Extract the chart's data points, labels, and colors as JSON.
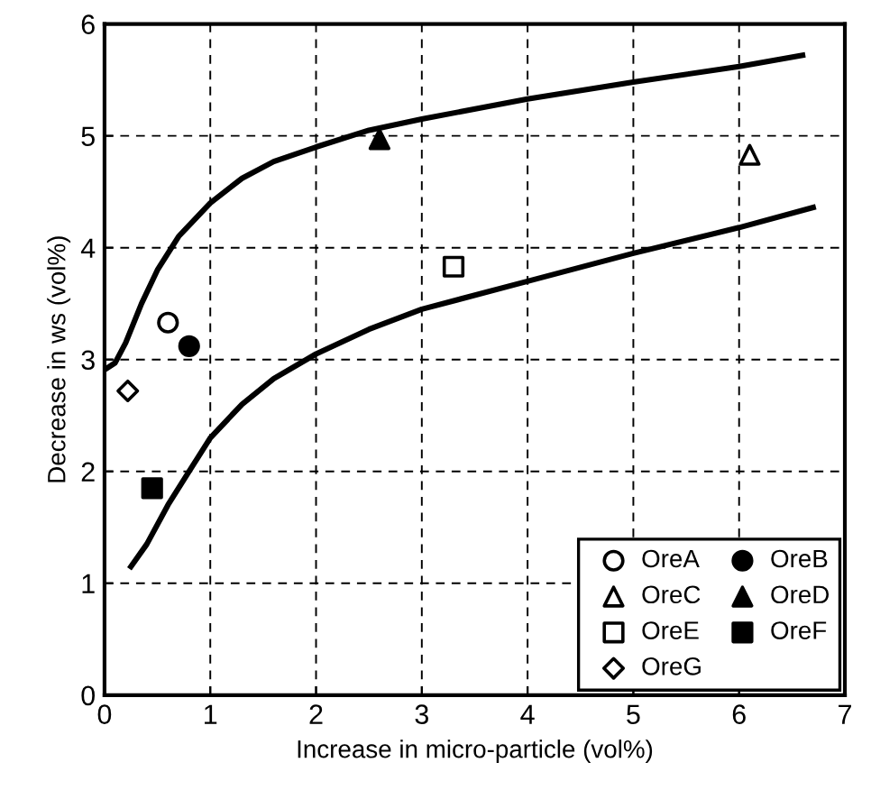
{
  "chart_data": {
    "type": "scatter",
    "xlabel": "Increase in micro-particle (vol%)",
    "ylabel": "Decrease in ws (vol%)",
    "xlim": [
      0,
      7
    ],
    "ylim": [
      0,
      6
    ],
    "xticks": [
      0,
      1,
      2,
      3,
      4,
      5,
      6,
      7
    ],
    "yticks": [
      0,
      1,
      2,
      3,
      4,
      5,
      6
    ],
    "grid": true,
    "legend": "bottom right",
    "series": [
      {
        "name": "OreA",
        "color": "#ffffff",
        "marker": "circle",
        "x": [
          0.6
        ],
        "values": [
          3.33
        ]
      },
      {
        "name": "OreB",
        "color": "#000000",
        "marker": "circle",
        "x": [
          0.8
        ],
        "values": [
          3.12
        ]
      },
      {
        "name": "OreC",
        "color": "#ffffff",
        "marker": "triangle",
        "x": [
          6.1
        ],
        "values": [
          4.83
        ]
      },
      {
        "name": "OreD",
        "color": "#000000",
        "marker": "triangle",
        "x": [
          2.6
        ],
        "values": [
          4.97
        ]
      },
      {
        "name": "OreE",
        "color": "#ffffff",
        "marker": "square",
        "x": [
          3.3
        ],
        "values": [
          3.83
        ]
      },
      {
        "name": "OreF",
        "color": "#000000",
        "marker": "square",
        "x": [
          0.45
        ],
        "values": [
          1.85
        ]
      },
      {
        "name": "OreG",
        "color": "#ffffff",
        "marker": "diamond",
        "x": [
          0.22
        ],
        "values": [
          2.72
        ]
      },
      {
        "type": "line",
        "color": "#000000",
        "marker": "none",
        "line_style": "solid",
        "x": [
          0.02,
          0.1,
          0.2,
          0.35,
          0.5,
          0.7,
          1.0,
          1.3,
          1.6,
          2.0,
          2.5,
          3.0,
          4.0,
          5.0,
          6.0,
          6.6
        ],
        "values": [
          2.92,
          2.97,
          3.15,
          3.5,
          3.8,
          4.1,
          4.4,
          4.62,
          4.77,
          4.9,
          5.05,
          5.15,
          5.33,
          5.48,
          5.62,
          5.72
        ]
      },
      {
        "type": "line",
        "color": "#000000",
        "marker": "none",
        "line_style": "solid",
        "x": [
          0.25,
          0.4,
          0.6,
          0.8,
          1.0,
          1.3,
          1.6,
          2.0,
          2.5,
          3.0,
          4.0,
          5.0,
          6.0,
          6.7
        ],
        "values": [
          1.15,
          1.35,
          1.7,
          2.0,
          2.3,
          2.6,
          2.83,
          3.05,
          3.27,
          3.45,
          3.7,
          3.95,
          4.18,
          4.36
        ]
      }
    ]
  }
}
